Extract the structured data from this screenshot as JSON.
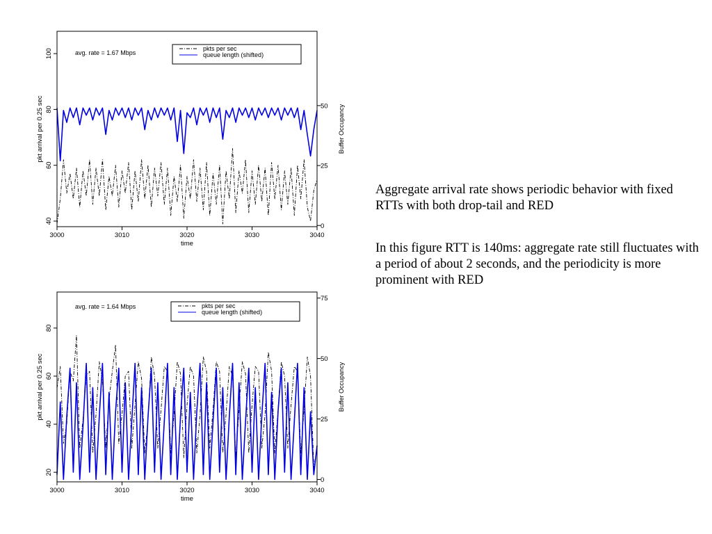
{
  "text": {
    "para1": "Aggregate arrival rate shows periodic behavior with fixed RTTs with both drop-tail and RED",
    "para2": "In this figure RTT is 140ms: aggregate rate still fluctuates with a period of about 2 seconds, and the periodicity is more prominent with RED"
  },
  "chart_data": [
    {
      "type": "line",
      "annotation": "avg. rate = 1.67 Mbps",
      "xlabel": "time",
      "ylabel": "pkt arrival per 0.25 sec",
      "ylabel_right": "Buffer Occupancy",
      "xlim": [
        3000,
        3040
      ],
      "ylim": [
        38,
        108
      ],
      "ylim_right": [
        -0.5,
        81
      ],
      "x_ticks": [
        3000,
        3010,
        3020,
        3030,
        3040
      ],
      "y_ticks": [
        40,
        60,
        80,
        100
      ],
      "y_ticks_right": [
        0,
        25,
        50
      ],
      "legend_position": "top-right",
      "colors": {
        "pkts": "#000000",
        "queue": "#0000e0"
      },
      "series": [
        {
          "name": "pkts per sec",
          "axis": "left",
          "style": "dash-dot",
          "x": [
            3000,
            3000.5,
            3001,
            3001.5,
            3002,
            3002.5,
            3003,
            3003.5,
            3004,
            3004.5,
            3005,
            3005.5,
            3006,
            3006.5,
            3007,
            3007.5,
            3008,
            3008.5,
            3009,
            3009.5,
            3010,
            3010.5,
            3011,
            3011.5,
            3012,
            3012.5,
            3013,
            3013.5,
            3014,
            3014.5,
            3015,
            3015.5,
            3016,
            3016.5,
            3017,
            3017.5,
            3018,
            3018.5,
            3019,
            3019.5,
            3020,
            3020.5,
            3021,
            3021.5,
            3022,
            3022.5,
            3023,
            3023.5,
            3024,
            3024.5,
            3025,
            3025.5,
            3026,
            3026.5,
            3027,
            3027.5,
            3028,
            3028.5,
            3029,
            3029.5,
            3030,
            3030.5,
            3031,
            3031.5,
            3032,
            3032.5,
            3033,
            3033.5,
            3034,
            3034.5,
            3035,
            3035.5,
            3036,
            3036.5,
            3037,
            3037.5,
            3038,
            3038.5,
            3039,
            3039.5,
            3040
          ],
          "values": [
            39,
            48,
            62,
            50,
            57,
            48,
            59,
            45,
            58,
            49,
            62,
            46,
            59,
            49,
            62,
            44,
            56,
            49,
            60,
            45,
            58,
            50,
            61,
            44,
            58,
            47,
            62,
            48,
            60,
            45,
            59,
            49,
            61,
            46,
            59,
            42,
            56,
            47,
            60,
            41,
            56,
            48,
            62,
            47,
            59,
            44,
            61,
            42,
            57,
            46,
            60,
            39,
            58,
            48,
            66,
            43,
            58,
            50,
            62,
            43,
            58,
            46,
            60,
            47,
            59,
            42,
            61,
            48,
            60,
            44,
            58,
            46,
            59,
            42,
            60,
            48,
            62,
            45,
            40,
            51,
            55
          ]
        },
        {
          "name": "queue length (shifted)",
          "axis": "right",
          "style": "solid",
          "x": [
            3000,
            3000.5,
            3001,
            3001.5,
            3002,
            3002.5,
            3003,
            3003.5,
            3004,
            3004.5,
            3005,
            3005.5,
            3006,
            3006.5,
            3007,
            3007.5,
            3008,
            3008.5,
            3009,
            3009.5,
            3010,
            3010.5,
            3011,
            3011.5,
            3012,
            3012.5,
            3013,
            3013.5,
            3014,
            3014.5,
            3015,
            3015.5,
            3016,
            3016.5,
            3017,
            3017.5,
            3018,
            3018.5,
            3019,
            3019.5,
            3020,
            3020.5,
            3021,
            3021.5,
            3022,
            3022.5,
            3023,
            3023.5,
            3024,
            3024.5,
            3025,
            3025.5,
            3026,
            3026.5,
            3027,
            3027.5,
            3028,
            3028.5,
            3029,
            3029.5,
            3030,
            3030.5,
            3031,
            3031.5,
            3032,
            3032.5,
            3033,
            3033.5,
            3034,
            3034.5,
            3035,
            3035.5,
            3036,
            3036.5,
            3037,
            3037.5,
            3038,
            3038.5,
            3039,
            3039.5,
            3040
          ],
          "values": [
            49,
            27,
            48,
            43,
            49,
            45,
            49,
            42,
            49,
            46,
            49,
            44,
            49,
            46,
            49,
            38,
            48,
            44,
            49,
            46,
            49,
            45,
            49,
            44,
            49,
            46,
            49,
            40,
            48,
            44,
            49,
            45,
            49,
            46,
            49,
            44,
            49,
            35,
            48,
            30,
            47,
            45,
            49,
            42,
            49,
            46,
            49,
            43,
            49,
            45,
            49,
            36,
            48,
            45,
            49,
            43,
            49,
            46,
            49,
            45,
            49,
            44,
            49,
            46,
            49,
            45,
            49,
            46,
            49,
            44,
            49,
            46,
            49,
            45,
            49,
            40,
            48,
            38,
            29,
            40,
            48
          ]
        }
      ]
    },
    {
      "type": "line",
      "annotation": "avg. rate = 1.64 Mbps",
      "xlabel": "time",
      "ylabel": "pkt arrival per 0.25 sec",
      "ylabel_right": "Buffer Occupancy",
      "xlim": [
        3000,
        3040
      ],
      "ylim": [
        16,
        95
      ],
      "ylim_right": [
        -1,
        77.5
      ],
      "x_ticks": [
        3000,
        3010,
        3020,
        3030,
        3040
      ],
      "y_ticks": [
        20,
        40,
        60,
        80
      ],
      "y_ticks_right": [
        0,
        25,
        50,
        75
      ],
      "legend_position": "top-right",
      "colors": {
        "pkts": "#000000",
        "queue": "#0000e0"
      },
      "series": [
        {
          "name": "pkts per sec",
          "axis": "left",
          "style": "dash-dot",
          "x": [
            3000,
            3000.5,
            3001,
            3001.5,
            3002,
            3002.5,
            3003,
            3003.5,
            3004,
            3004.5,
            3005,
            3005.5,
            3006,
            3006.5,
            3007,
            3007.5,
            3008,
            3008.5,
            3009,
            3009.5,
            3010,
            3010.5,
            3011,
            3011.5,
            3012,
            3012.5,
            3013,
            3013.5,
            3014,
            3014.5,
            3015,
            3015.5,
            3016,
            3016.5,
            3017,
            3017.5,
            3018,
            3018.5,
            3019,
            3019.5,
            3020,
            3020.5,
            3021,
            3021.5,
            3022,
            3022.5,
            3023,
            3023.5,
            3024,
            3024.5,
            3025,
            3025.5,
            3026,
            3026.5,
            3027,
            3027.5,
            3028,
            3028.5,
            3029,
            3029.5,
            3030,
            3030.5,
            3031,
            3031.5,
            3032,
            3032.5,
            3033,
            3033.5,
            3034,
            3034.5,
            3035,
            3035.5,
            3036,
            3036.5,
            3037,
            3037.5,
            3038,
            3038.5,
            3039,
            3039.5,
            3040
          ],
          "values": [
            55,
            64,
            32,
            40,
            62,
            58,
            77,
            30,
            42,
            60,
            62,
            28,
            44,
            66,
            58,
            30,
            50,
            62,
            73,
            32,
            44,
            60,
            62,
            30,
            48,
            66,
            59,
            28,
            42,
            68,
            60,
            30,
            46,
            64,
            62,
            28,
            44,
            66,
            61,
            26,
            48,
            64,
            60,
            28,
            44,
            68,
            62,
            30,
            46,
            66,
            62,
            28,
            44,
            64,
            60,
            26,
            46,
            66,
            61,
            28,
            48,
            64,
            62,
            30,
            44,
            70,
            62,
            28,
            46,
            66,
            60,
            30,
            48,
            64,
            62,
            28,
            46,
            68,
            60,
            22,
            30
          ]
        },
        {
          "name": "queue length (shifted)",
          "axis": "right",
          "style": "solid",
          "x": [
            3000,
            3000.5,
            3001,
            3001.5,
            3002,
            3002.5,
            3003,
            3003.5,
            3004,
            3004.5,
            3005,
            3005.5,
            3006,
            3006.5,
            3007,
            3007.5,
            3008,
            3008.5,
            3009,
            3009.5,
            3010,
            3010.5,
            3011,
            3011.5,
            3012,
            3012.5,
            3013,
            3013.5,
            3014,
            3014.5,
            3015,
            3015.5,
            3016,
            3016.5,
            3017,
            3017.5,
            3018,
            3018.5,
            3019,
            3019.5,
            3020,
            3020.5,
            3021,
            3021.5,
            3022,
            3022.5,
            3023,
            3023.5,
            3024,
            3024.5,
            3025,
            3025.5,
            3026,
            3026.5,
            3027,
            3027.5,
            3028,
            3028.5,
            3029,
            3029.5,
            3030,
            3030.5,
            3031,
            3031.5,
            3032,
            3032.5,
            3033,
            3033.5,
            3034,
            3034.5,
            3035,
            3035.5,
            3036,
            3036.5,
            3037,
            3037.5,
            3038,
            3038.5,
            3039,
            3039.5,
            3040
          ],
          "values": [
            2,
            32,
            0,
            26,
            46,
            3,
            40,
            0,
            22,
            48,
            3,
            38,
            0,
            26,
            48,
            2,
            36,
            0,
            28,
            46,
            3,
            40,
            0,
            24,
            48,
            2,
            38,
            0,
            26,
            46,
            3,
            40,
            0,
            24,
            48,
            2,
            38,
            0,
            26,
            46,
            3,
            36,
            0,
            28,
            48,
            2,
            40,
            0,
            24,
            46,
            3,
            38,
            0,
            26,
            48,
            2,
            40,
            0,
            24,
            46,
            3,
            38,
            0,
            26,
            48,
            2,
            36,
            0,
            28,
            46,
            3,
            40,
            0,
            24,
            48,
            2,
            38,
            0,
            28,
            2,
            14
          ]
        }
      ]
    }
  ]
}
